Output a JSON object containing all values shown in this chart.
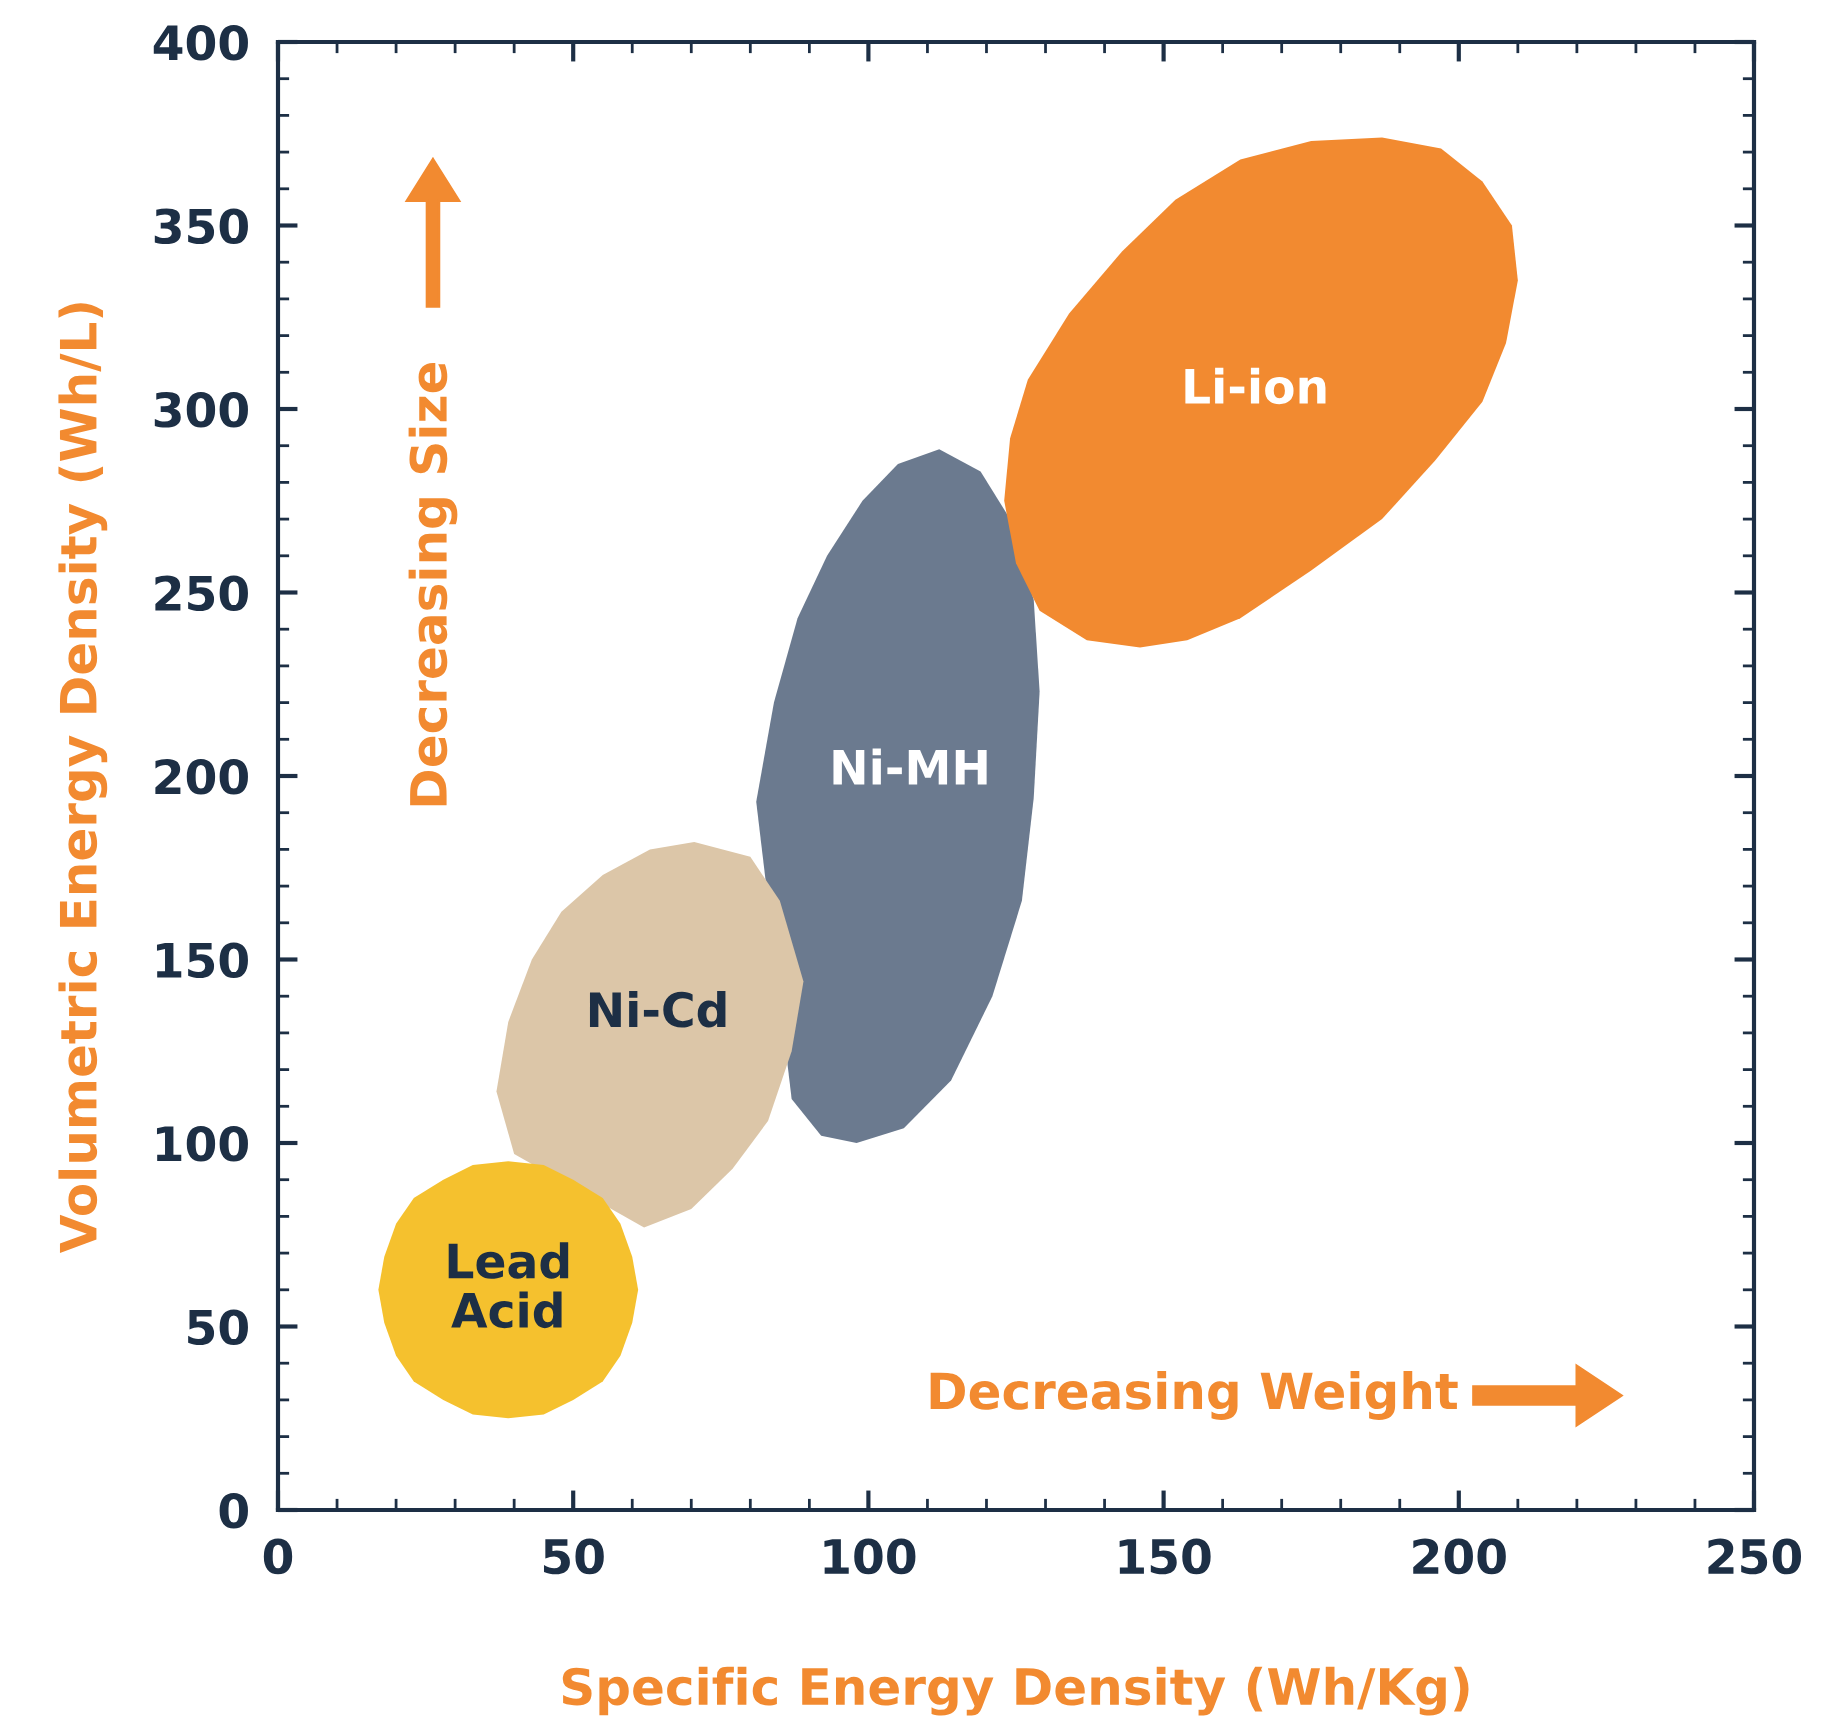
{
  "chart_data": {
    "type": "area",
    "xlabel": "Specific Energy Density (Wh/Kg)",
    "ylabel": "Volumetric Energy Density (Wh/L)",
    "xlim": [
      0,
      250
    ],
    "xticks": [
      0,
      50,
      100,
      150,
      200,
      250
    ],
    "ylim": [
      0,
      400
    ],
    "yticks": [
      0,
      50,
      100,
      150,
      200,
      250,
      300,
      350,
      400
    ],
    "annotations": [
      "Decreasing Size",
      "Decreasing Weight"
    ],
    "series": [
      {
        "name": "Ni-MH",
        "color": "#6b7a8f",
        "x": [
          112,
          119,
          124,
          128,
          129,
          128,
          126,
          121,
          114,
          106,
          98,
          92,
          87,
          81,
          84,
          88,
          93,
          99,
          105
        ],
        "values": [
          289,
          283,
          270,
          248,
          223,
          194,
          166,
          140,
          117,
          104,
          100,
          102,
          112,
          193,
          220,
          243,
          260,
          275,
          285
        ]
      },
      {
        "name": "Ni-Cd",
        "color": "#dcc6a8",
        "x": [
          70.5,
          80,
          85,
          89,
          87,
          83,
          77,
          70,
          62,
          40,
          37,
          39,
          43,
          48,
          55,
          63
        ],
        "values": [
          182,
          178,
          166,
          144,
          125,
          106,
          93,
          82,
          77,
          97,
          114,
          133,
          150,
          163,
          173,
          180
        ]
      },
      {
        "name": "Li-ion",
        "color": "#f28a30",
        "x": [
          187,
          197,
          204,
          209,
          210,
          208,
          204,
          196,
          187,
          175,
          163,
          154,
          146,
          137,
          129,
          125,
          123,
          124,
          127,
          134,
          143,
          152,
          163,
          175
        ],
        "values": [
          374,
          371,
          362,
          350,
          335,
          318,
          302,
          286,
          270,
          256,
          243,
          237,
          235,
          237,
          245,
          258,
          275,
          292,
          308,
          326,
          343,
          357,
          368,
          373
        ]
      },
      {
        "name": "Lead\nAcid",
        "color": "#f5c12e",
        "x": [
          61,
          60,
          58,
          55,
          50,
          45,
          39,
          33,
          28,
          23,
          20,
          18,
          17,
          18,
          20,
          23,
          28,
          33,
          39,
          45,
          50,
          55,
          58,
          60
        ],
        "values": [
          60,
          69,
          78,
          85,
          90,
          94,
          95,
          94,
          90,
          85,
          78,
          69,
          60,
          51,
          42,
          35,
          30,
          26,
          25,
          26,
          30,
          35,
          42,
          51
        ]
      }
    ]
  }
}
